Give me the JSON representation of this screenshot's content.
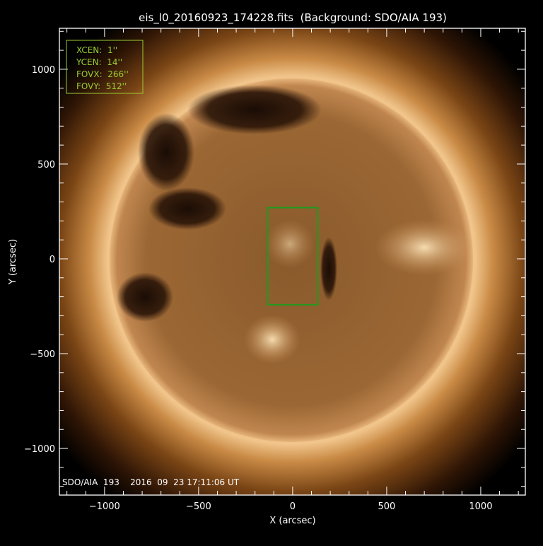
{
  "chart_data": {
    "type": "heatmap",
    "title": "eis_l0_20160923_174228.fits  (Background: SDO/AIA 193)",
    "xlabel": "X (arcsec)",
    "ylabel": "Y (arcsec)",
    "xlim": [
      -1240,
      1237
    ],
    "ylim": [
      -1246,
      1216
    ],
    "x_ticks": [
      -1000,
      -500,
      0,
      500,
      1000
    ],
    "y_ticks": [
      -1000,
      -500,
      0,
      500,
      1000
    ],
    "x_tick_labels": [
      "−1000",
      "−500",
      "0",
      "500",
      "1000"
    ],
    "y_tick_labels": [
      "−1000",
      "−500",
      "0",
      "500",
      "1000"
    ],
    "minor_tick_step": 100,
    "grid": false,
    "colormap": "SDO/AIA 193 (brown-gold)",
    "solar_radius_arcsec": 960,
    "fov_box": {
      "xcen": 1,
      "ycen": 14,
      "fovx": 266,
      "fovy": 512,
      "color": "#1f9a1f"
    },
    "info_box": {
      "lines": [
        "XCEN:  1''",
        "YCEN:  14''",
        "FOVX:  266''",
        "FOVY:  512''"
      ],
      "color": "#9acd32"
    },
    "image_caption": "SDO/AIA  193    2016  09  23 17:11:06 UT"
  }
}
